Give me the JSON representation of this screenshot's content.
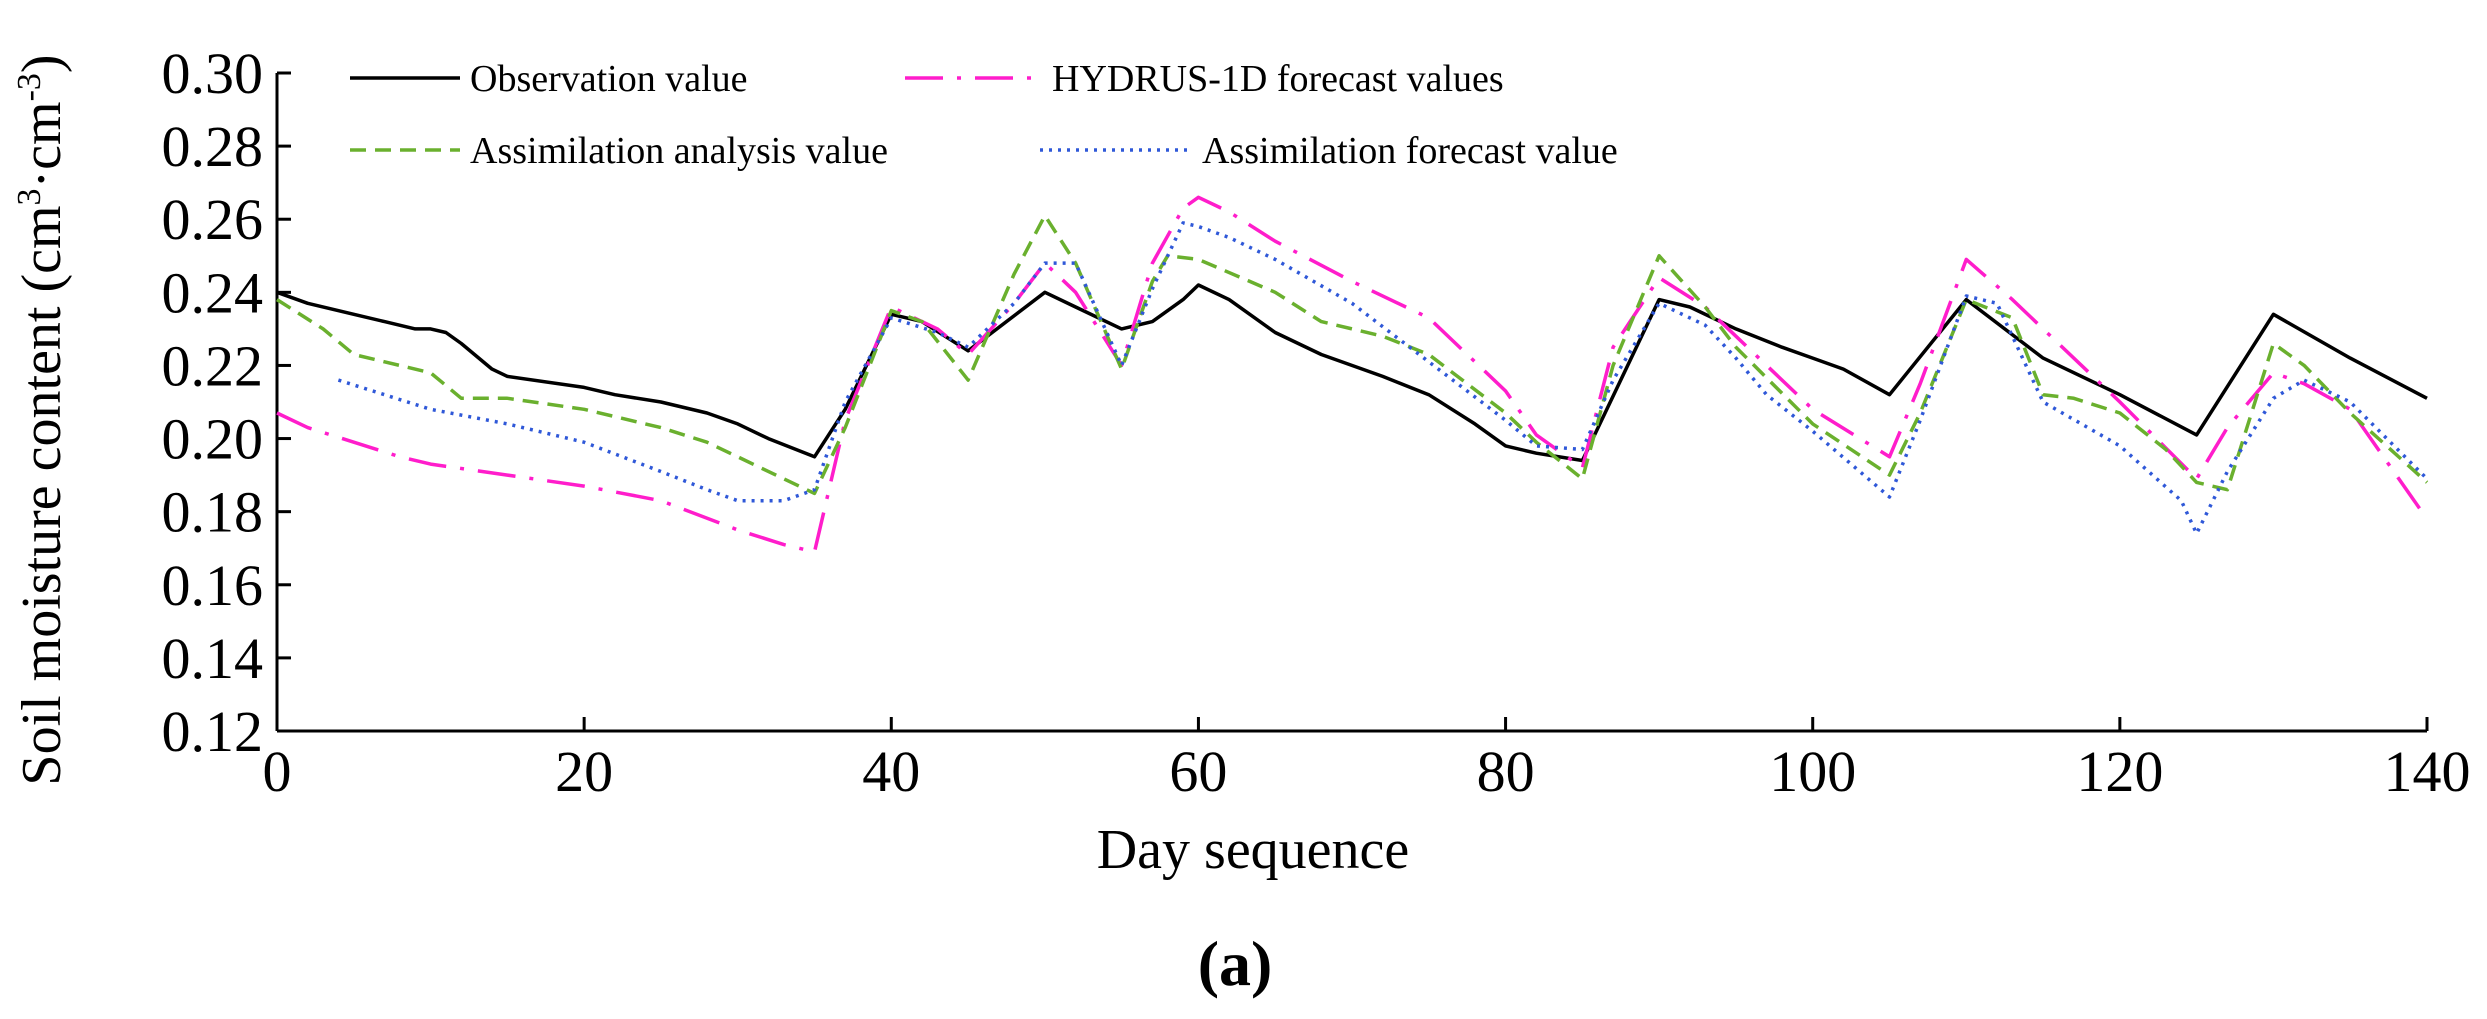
{
  "chart_data": {
    "type": "line",
    "xlabel": "Day sequence",
    "ylabel_main": "Soil moisture content (cm",
    "ylabel_sup1": "3",
    "ylabel_mid": "·cm",
    "ylabel_sup2": "-3",
    "ylabel_close": ")",
    "caption": "(a)",
    "xlim": [
      0,
      140
    ],
    "ylim": [
      0.12,
      0.3
    ],
    "xticks": [
      0,
      20,
      40,
      60,
      80,
      100,
      120,
      140
    ],
    "yticks": [
      0.12,
      0.14,
      0.16,
      0.18,
      0.2,
      0.22,
      0.24,
      0.26,
      0.28,
      0.3
    ],
    "yticks_labels": [
      "0.12",
      "0.14",
      "0.16",
      "0.18",
      "0.20",
      "0.22",
      "0.24",
      "0.26",
      "0.28",
      "0.30"
    ],
    "legend_position": "top",
    "series": [
      {
        "name": "Observation value",
        "color": "#000000",
        "style": "solid",
        "x": [
          0,
          2,
          5,
          7,
          9,
          10,
          11,
          12,
          14,
          15,
          20,
          22,
          25,
          28,
          30,
          32,
          35,
          37,
          40,
          42,
          45,
          50,
          52,
          55,
          57,
          59,
          60,
          62,
          65,
          68,
          72,
          75,
          78,
          80,
          82,
          85,
          90,
          92,
          95,
          98,
          100,
          102,
          105,
          110,
          115,
          120,
          125,
          130,
          135,
          140
        ],
        "y": [
          0.24,
          0.237,
          0.234,
          0.232,
          0.23,
          0.23,
          0.229,
          0.226,
          0.219,
          0.217,
          0.214,
          0.212,
          0.21,
          0.207,
          0.204,
          0.2,
          0.195,
          0.208,
          0.234,
          0.232,
          0.224,
          0.24,
          0.236,
          0.23,
          0.232,
          0.238,
          0.242,
          0.238,
          0.229,
          0.223,
          0.217,
          0.212,
          0.204,
          0.198,
          0.196,
          0.194,
          0.238,
          0.236,
          0.23,
          0.225,
          0.222,
          0.219,
          0.212,
          0.238,
          0.222,
          0.212,
          0.201,
          0.234,
          0.222,
          0.211
        ]
      },
      {
        "name": "HYDRUS-1D forecast values",
        "color": "#FF1DCB",
        "style": "dashdot",
        "x": [
          0,
          2,
          5,
          8,
          10,
          15,
          20,
          25,
          30,
          33,
          35,
          37,
          40,
          43,
          45,
          48,
          50,
          52,
          55,
          57,
          59,
          60,
          62,
          65,
          70,
          75,
          80,
          82,
          85,
          87,
          90,
          93,
          95,
          100,
          105,
          107,
          110,
          113,
          115,
          120,
          125,
          127,
          130,
          132,
          135,
          140
        ],
        "y": [
          0.207,
          0.203,
          0.199,
          0.195,
          0.193,
          0.19,
          0.187,
          0.183,
          0.175,
          0.171,
          0.169,
          0.205,
          0.236,
          0.23,
          0.223,
          0.237,
          0.248,
          0.24,
          0.22,
          0.248,
          0.263,
          0.266,
          0.262,
          0.254,
          0.243,
          0.233,
          0.213,
          0.201,
          0.192,
          0.225,
          0.244,
          0.236,
          0.228,
          0.208,
          0.195,
          0.215,
          0.249,
          0.238,
          0.23,
          0.21,
          0.189,
          0.203,
          0.218,
          0.215,
          0.208,
          0.178
        ]
      },
      {
        "name": "Assimilation analysis value",
        "color": "#6AB02E",
        "style": "dashed",
        "x": [
          0,
          3,
          5,
          7,
          10,
          12,
          15,
          20,
          25,
          28,
          30,
          33,
          35,
          37,
          40,
          42,
          45,
          48,
          50,
          52,
          55,
          57,
          58,
          60,
          65,
          68,
          72,
          75,
          80,
          82,
          85,
          87,
          90,
          93,
          95,
          100,
          105,
          107,
          110,
          113,
          115,
          117,
          120,
          123,
          125,
          127,
          130,
          132,
          135,
          140
        ],
        "y": [
          0.238,
          0.23,
          0.223,
          0.221,
          0.218,
          0.211,
          0.211,
          0.208,
          0.203,
          0.199,
          0.195,
          0.189,
          0.185,
          0.203,
          0.235,
          0.232,
          0.216,
          0.245,
          0.261,
          0.248,
          0.219,
          0.243,
          0.25,
          0.249,
          0.24,
          0.232,
          0.228,
          0.223,
          0.207,
          0.199,
          0.189,
          0.22,
          0.25,
          0.236,
          0.225,
          0.204,
          0.19,
          0.207,
          0.238,
          0.233,
          0.212,
          0.211,
          0.207,
          0.197,
          0.188,
          0.186,
          0.226,
          0.22,
          0.207,
          0.188
        ]
      },
      {
        "name": "Assimilation forecast value",
        "color": "#2F58D8",
        "style": "dotted",
        "x": [
          4,
          7,
          10,
          15,
          20,
          25,
          28,
          30,
          32,
          33,
          35,
          37,
          40,
          43,
          45,
          48,
          50,
          52,
          55,
          57,
          59,
          60,
          62,
          65,
          70,
          75,
          80,
          82,
          85,
          87,
          90,
          93,
          95,
          97,
          100,
          105,
          107,
          110,
          112,
          115,
          120,
          124,
          125,
          127,
          130,
          132,
          135,
          140
        ],
        "y": [
          0.216,
          0.212,
          0.208,
          0.204,
          0.199,
          0.191,
          0.186,
          0.183,
          0.183,
          0.183,
          0.186,
          0.21,
          0.233,
          0.229,
          0.225,
          0.237,
          0.248,
          0.248,
          0.22,
          0.241,
          0.259,
          0.258,
          0.255,
          0.249,
          0.237,
          0.221,
          0.205,
          0.198,
          0.197,
          0.216,
          0.237,
          0.231,
          0.222,
          0.212,
          0.202,
          0.184,
          0.205,
          0.239,
          0.237,
          0.21,
          0.198,
          0.183,
          0.174,
          0.191,
          0.211,
          0.216,
          0.21,
          0.189
        ]
      }
    ]
  }
}
